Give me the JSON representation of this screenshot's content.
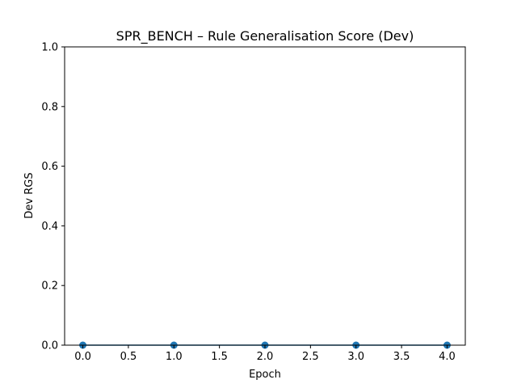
{
  "chart_data": {
    "type": "line",
    "title": "SPR_BENCH – Rule Generalisation Score (Dev)",
    "xlabel": "Epoch",
    "ylabel": "Dev RGS",
    "x": [
      0,
      1,
      2,
      3,
      4
    ],
    "series": [
      {
        "values": [
          0.0,
          0.0,
          0.0,
          0.0,
          0.0
        ],
        "color": "#1f77b4",
        "marker": "circle"
      }
    ],
    "xlim": [
      -0.2,
      4.2
    ],
    "ylim": [
      0,
      1
    ],
    "xticks": [
      0.0,
      0.5,
      1.0,
      1.5,
      2.0,
      2.5,
      3.0,
      3.5,
      4.0
    ],
    "xtick_labels": [
      "0.0",
      "0.5",
      "1.0",
      "1.5",
      "2.0",
      "2.5",
      "3.0",
      "3.5",
      "4.0"
    ],
    "yticks": [
      0.0,
      0.2,
      0.4,
      0.6,
      0.8,
      1.0
    ],
    "ytick_labels": [
      "0.0",
      "0.2",
      "0.4",
      "0.6",
      "0.8",
      "1.0"
    ],
    "grid": false,
    "legend": "none"
  }
}
